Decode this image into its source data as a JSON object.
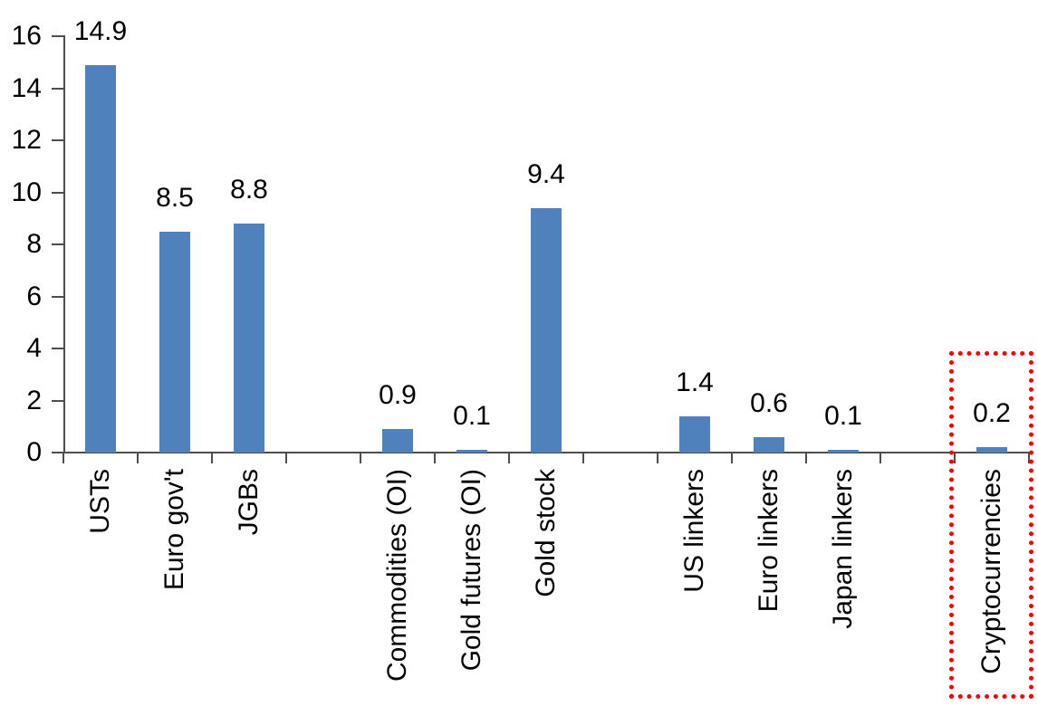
{
  "chart_data": {
    "type": "bar",
    "title": "",
    "xlabel": "",
    "ylabel": "",
    "ylim": [
      0,
      16
    ],
    "yticks": [
      0,
      2,
      4,
      6,
      8,
      10,
      12,
      14,
      16
    ],
    "grid": false,
    "legend": false,
    "bar_color": "#4F81BD",
    "axis_color": "#4d4d4d",
    "text_color": "#000000",
    "categories": [
      "USTs",
      "Euro gov't",
      "JGBs",
      "Commodities (OI)",
      "Gold futures (OI)",
      "Gold stock",
      "US linkers",
      "Euro linkers",
      "Japan linkers",
      "Cryptocurrencies"
    ],
    "values": [
      14.9,
      8.5,
      8.8,
      0.9,
      0.1,
      9.4,
      1.4,
      0.6,
      0.1,
      0.2
    ],
    "groups": [
      {
        "items": [
          {
            "label": "USTs",
            "value": 14.9,
            "value_label": "14.9"
          },
          {
            "label": "Euro gov't",
            "value": 8.5,
            "value_label": "8.5"
          },
          {
            "label": "JGBs",
            "value": 8.8,
            "value_label": "8.8"
          }
        ]
      },
      {
        "items": [
          {
            "label": "Commodities (OI)",
            "value": 0.9,
            "value_label": "0.9"
          },
          {
            "label": "Gold futures (OI)",
            "value": 0.1,
            "value_label": "0.1"
          },
          {
            "label": "Gold stock",
            "value": 9.4,
            "value_label": "9.4"
          }
        ]
      },
      {
        "items": [
          {
            "label": "US linkers",
            "value": 1.4,
            "value_label": "1.4"
          },
          {
            "label": "Euro linkers",
            "value": 0.6,
            "value_label": "0.6"
          },
          {
            "label": "Japan linkers",
            "value": 0.1,
            "value_label": "0.1"
          }
        ]
      },
      {
        "items": [
          {
            "label": "Cryptocurrencies",
            "value": 0.2,
            "value_label": "0.2",
            "highlighted": true
          }
        ]
      }
    ],
    "highlight_box": {
      "color": "#FF0000",
      "style": "dotted",
      "around": "Cryptocurrencies"
    }
  }
}
